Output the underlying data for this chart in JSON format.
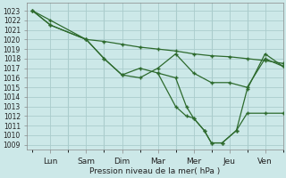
{
  "background_color": "#cce8e8",
  "grid_color": "#aacccc",
  "line_color": "#2d6a2d",
  "marker_color": "#2d6a2d",
  "xlabel": "Pression niveau de la mer( hPa )",
  "ylim": [
    1008.5,
    1023.8
  ],
  "xlim": [
    -0.15,
    7.0
  ],
  "yticks": [
    1009,
    1010,
    1011,
    1012,
    1013,
    1014,
    1015,
    1016,
    1017,
    1018,
    1019,
    1020,
    1021,
    1022,
    1023
  ],
  "xtick_labels": [
    "Lun",
    "Sam",
    "Dim",
    "Mar",
    "Mer",
    "Jeu",
    "Ven"
  ],
  "xtick_positions": [
    0.5,
    1.5,
    2.5,
    3.5,
    4.5,
    5.5,
    6.5
  ],
  "series1_x": [
    0.0,
    0.5,
    1.5,
    2.0,
    2.5,
    3.0,
    3.5,
    4.0,
    4.5,
    5.0,
    5.5,
    6.0,
    6.5,
    7.0
  ],
  "series1_y": [
    1023.0,
    1022.0,
    1020.0,
    1019.8,
    1019.5,
    1019.2,
    1019.0,
    1018.8,
    1018.5,
    1018.3,
    1018.2,
    1018.0,
    1017.8,
    1017.5
  ],
  "series2_x": [
    0.0,
    0.5,
    1.5,
    2.0,
    2.5,
    3.0,
    3.5,
    4.0,
    4.5,
    5.0,
    5.5,
    6.0,
    6.5,
    7.0
  ],
  "series2_y": [
    1023.0,
    1021.5,
    1020.0,
    1018.0,
    1016.3,
    1016.0,
    1017.0,
    1018.5,
    1016.5,
    1015.5,
    1015.5,
    1015.0,
    1018.0,
    1017.2
  ],
  "series3_x": [
    0.0,
    0.5,
    1.5,
    2.0,
    2.5,
    3.0,
    3.5,
    4.0,
    4.3,
    4.5,
    4.8,
    5.0,
    5.3,
    5.7,
    6.0,
    6.5,
    7.0
  ],
  "series3_y": [
    1023.0,
    1021.5,
    1020.0,
    1018.0,
    1016.3,
    1017.0,
    1016.5,
    1013.0,
    1012.0,
    1011.8,
    1010.5,
    1009.2,
    1009.2,
    1010.5,
    1012.3,
    1012.3,
    1012.3
  ],
  "series4_x": [
    3.5,
    4.0,
    4.3,
    4.5,
    4.8,
    5.0,
    5.3,
    5.7,
    6.0,
    6.5,
    7.0
  ],
  "series4_y": [
    1016.5,
    1016.0,
    1013.0,
    1011.8,
    1010.5,
    1009.2,
    1009.2,
    1010.5,
    1014.8,
    1018.5,
    1017.2
  ]
}
